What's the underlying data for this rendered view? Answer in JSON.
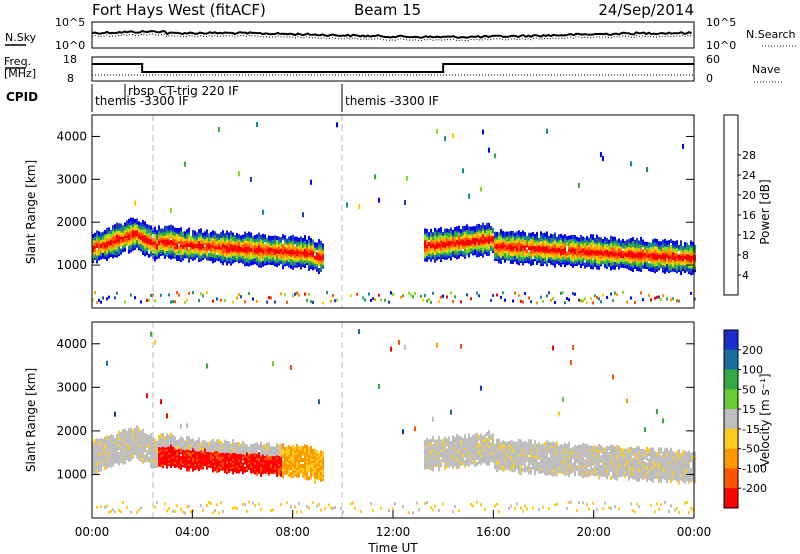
{
  "header": {
    "station": "Fort Hays West (fitACF)",
    "beam": "Beam 15",
    "date": "24/Sep/2014"
  },
  "noise_panel": {
    "left_label": "N.Sky",
    "right_label": "N.Search",
    "left_ticks": [
      "10^5",
      "10^0"
    ],
    "right_ticks": [
      "10^5",
      "10^0"
    ]
  },
  "freq_panel": {
    "left_label_line1": "Freq.",
    "left_label_line2": "[MHz]",
    "right_label": "Nave",
    "left_ticks": [
      "18",
      "8"
    ],
    "right_ticks": [
      "60",
      "0"
    ]
  },
  "cpid": {
    "label": "CPID",
    "segments": [
      {
        "start_hour": 0.0,
        "text": "themis -3300 IF"
      },
      {
        "start_hour": 2.5,
        "text": "rbsp CT-trig 220 IF"
      },
      {
        "start_hour": 10.0,
        "text": "themis -3300 IF"
      }
    ]
  },
  "colors": {
    "power": [
      "#0000ff",
      "#1f3fb4",
      "#1a8a8a",
      "#33aa44",
      "#88dd22",
      "#ffcc00",
      "#ff9900",
      "#ff5500",
      "#ff0000"
    ],
    "velocity": [
      "#1a2fcc",
      "#1a6fa0",
      "#33aa44",
      "#66cc33",
      "#bebebe",
      "#ffcc22",
      "#ff9900",
      "#ff5500",
      "#ff0000"
    ]
  },
  "chart_data": [
    {
      "type": "heatmap",
      "name": "power",
      "ylabel": "Slant Range [km]",
      "xlim": [
        0,
        24
      ],
      "ylim": [
        0,
        4500
      ],
      "yticks": [
        "1000",
        "2000",
        "3000",
        "4000"
      ],
      "colorbar": {
        "label": "Power [dB]",
        "ticks": [
          "4",
          "8",
          "12",
          "16",
          "20",
          "24",
          "28"
        ]
      }
    },
    {
      "type": "heatmap",
      "name": "velocity",
      "ylabel": "Slant Range [km]",
      "xlabel": "Time UT",
      "xlim": [
        0,
        24
      ],
      "ylim": [
        0,
        4500
      ],
      "xticks": [
        "00:00",
        "04:00",
        "08:00",
        "12:00",
        "16:00",
        "20:00",
        "00:00"
      ],
      "yticks": [
        "1000",
        "2000",
        "3000",
        "4000"
      ],
      "colorbar": {
        "label": "Velocity [m s⁻¹]",
        "ticks": [
          "200",
          "100",
          "50",
          "15",
          "-15",
          "-50",
          "-100",
          "-200"
        ]
      }
    }
  ]
}
